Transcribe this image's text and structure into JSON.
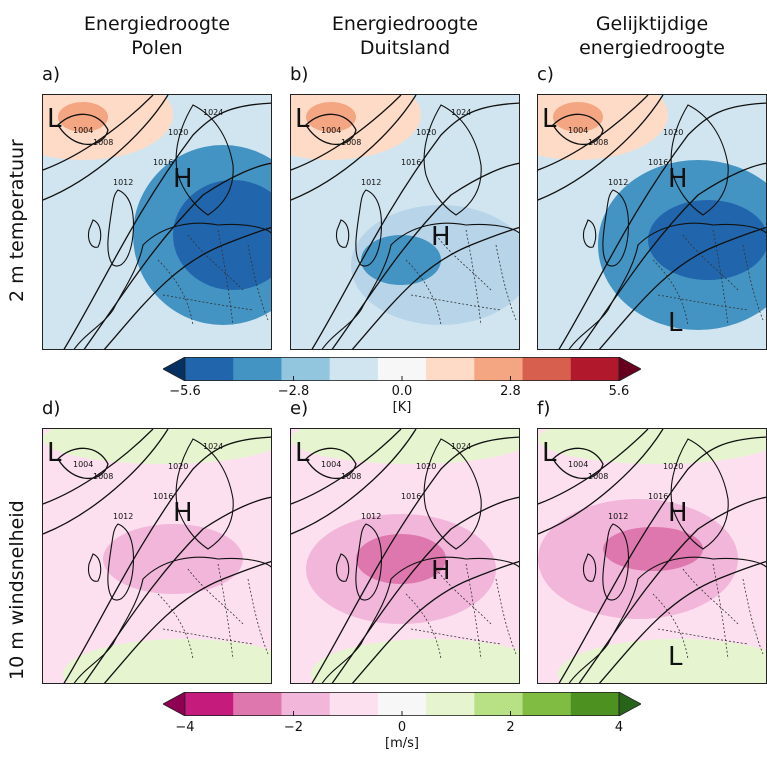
{
  "columns": [
    {
      "line1": "Energiedroogte",
      "line2": "Polen"
    },
    {
      "line1": "Energiedroogte",
      "line2": "Duitsland"
    },
    {
      "line1": "Gelijktijdige",
      "line2": "energiedroogte"
    }
  ],
  "rows": [
    {
      "label": "2 m temperatuur"
    },
    {
      "label": "10 m windsnelheid"
    }
  ],
  "panels": [
    {
      "label": "a)",
      "variable": "temperature",
      "highs": [
        "H"
      ],
      "lows": [
        "L"
      ],
      "isobars": [
        "1004",
        "1008",
        "1012",
        "1016",
        "1020",
        "1024"
      ]
    },
    {
      "label": "b)",
      "variable": "temperature",
      "highs": [
        "H"
      ],
      "lows": [
        "L"
      ],
      "isobars": [
        "1004",
        "1008",
        "1012",
        "1016",
        "1020",
        "1024"
      ]
    },
    {
      "label": "c)",
      "variable": "temperature",
      "highs": [
        "H"
      ],
      "lows": [
        "L",
        "L"
      ],
      "isobars": [
        "1004",
        "1008",
        "1012",
        "1016",
        "1020"
      ]
    },
    {
      "label": "d)",
      "variable": "wind",
      "highs": [
        "H"
      ],
      "lows": [
        "L"
      ],
      "isobars": [
        "1004",
        "1008",
        "1012",
        "1016",
        "1020",
        "1024"
      ]
    },
    {
      "label": "e)",
      "variable": "wind",
      "highs": [
        "H"
      ],
      "lows": [
        "L"
      ],
      "isobars": [
        "1004",
        "1008",
        "1012",
        "1016",
        "1020",
        "1024"
      ]
    },
    {
      "label": "f)",
      "variable": "wind",
      "highs": [
        "H"
      ],
      "lows": [
        "L",
        "L"
      ],
      "isobars": [
        "1004",
        "1008",
        "1012",
        "1016",
        "1020"
      ]
    }
  ],
  "chart_data": [
    {
      "type": "heatmap",
      "variable": "2 m temperature anomaly",
      "colorbar": {
        "unit": "[K]",
        "tick_labels": [
          "−5.6",
          "−2.8",
          "0.0",
          "2.8",
          "5.6"
        ],
        "tick_values": [
          -5.6,
          -2.8,
          0.0,
          2.8,
          5.6
        ],
        "boundaries": [
          -7.0,
          -5.6,
          -4.2,
          -2.8,
          -1.4,
          0.0,
          1.4,
          2.8,
          4.2,
          5.6,
          7.0
        ],
        "colors": [
          "#053061",
          "#2166ac",
          "#4393c3",
          "#92c5de",
          "#d1e5f0",
          "#f7f7f7",
          "#fddbc7",
          "#f4a582",
          "#d6604d",
          "#b2182b",
          "#67001f"
        ],
        "extend": "both"
      },
      "panels": [
        "a)",
        "b)",
        "c)"
      ]
    },
    {
      "type": "heatmap",
      "variable": "10 m wind speed anomaly",
      "colorbar": {
        "unit": "[m/s]",
        "tick_labels": [
          "−4",
          "−2",
          "0",
          "2",
          "4"
        ],
        "tick_values": [
          -4,
          -2,
          0,
          2,
          4
        ],
        "boundaries": [
          -5,
          -4,
          -3,
          -2,
          -1,
          0,
          1,
          2,
          3,
          4,
          5
        ],
        "colors": [
          "#8e0152",
          "#c51b7d",
          "#de77ae",
          "#f1b6da",
          "#fde0ef",
          "#f7f7f7",
          "#e6f5d0",
          "#b8e186",
          "#7fbc41",
          "#4d9221",
          "#276419"
        ],
        "extend": "both"
      },
      "panels": [
        "d)",
        "e)",
        "f)"
      ]
    }
  ],
  "colors": {
    "temp_anomaly_strong": "#2166ac",
    "temp_anomaly_mid": "#4393c3",
    "temp_anomaly_weak": "#d1e5f0",
    "temp_warm": "#fddbc7",
    "temp_warm_mid": "#f4a582",
    "wind_neg_weak": "#fde0ef",
    "wind_neg_mid": "#f1b6da",
    "wind_neg_strong": "#de77ae",
    "wind_pos_weak": "#e6f5d0"
  }
}
